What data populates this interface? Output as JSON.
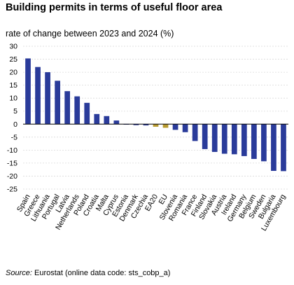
{
  "chart_data": {
    "type": "bar",
    "title": "Building permits in terms of useful floor area",
    "subtitle": "rate of change between 2023 and 2024 (%)",
    "categories": [
      "Spain",
      "Greece",
      "Lithuania",
      "Portugal",
      "Latvia",
      "Netherlands",
      "Poland",
      "Croatia",
      "Malta",
      "Cyprus",
      "Estonia",
      "Denmark",
      "Czechia",
      "EA20",
      "EU",
      "Slovenia",
      "Romania",
      "France",
      "Finland",
      "Slovakia",
      "Austria",
      "Ireland",
      "Germany",
      "Belgium",
      "Sweden",
      "Bulgaria",
      "Luxembourg"
    ],
    "values": [
      25.3,
      22.0,
      20.0,
      16.7,
      12.7,
      10.7,
      8.2,
      3.9,
      3.1,
      1.4,
      -0.2,
      -0.4,
      -0.5,
      -1.0,
      -1.4,
      -2.2,
      -3.1,
      -6.5,
      -9.6,
      -10.7,
      -11.4,
      -11.6,
      -12.3,
      -13.4,
      -14.3,
      -18.0,
      -18.1
    ],
    "highlight": [
      "EA20",
      "EU"
    ],
    "colors": {
      "bar": "#2a3b9a",
      "highlight": "#b89a2e",
      "grid": "#d9d9d9",
      "axis": "#000000"
    },
    "ylim": [
      -25,
      30
    ],
    "yticks": [
      30,
      25,
      20,
      15,
      10,
      5,
      0,
      -5,
      -10,
      -15,
      -20,
      -25
    ],
    "grid": true,
    "legend": "none"
  },
  "source": {
    "label": "Source:",
    "text": "Eurostat (online data code: sts_cobp_a)"
  }
}
